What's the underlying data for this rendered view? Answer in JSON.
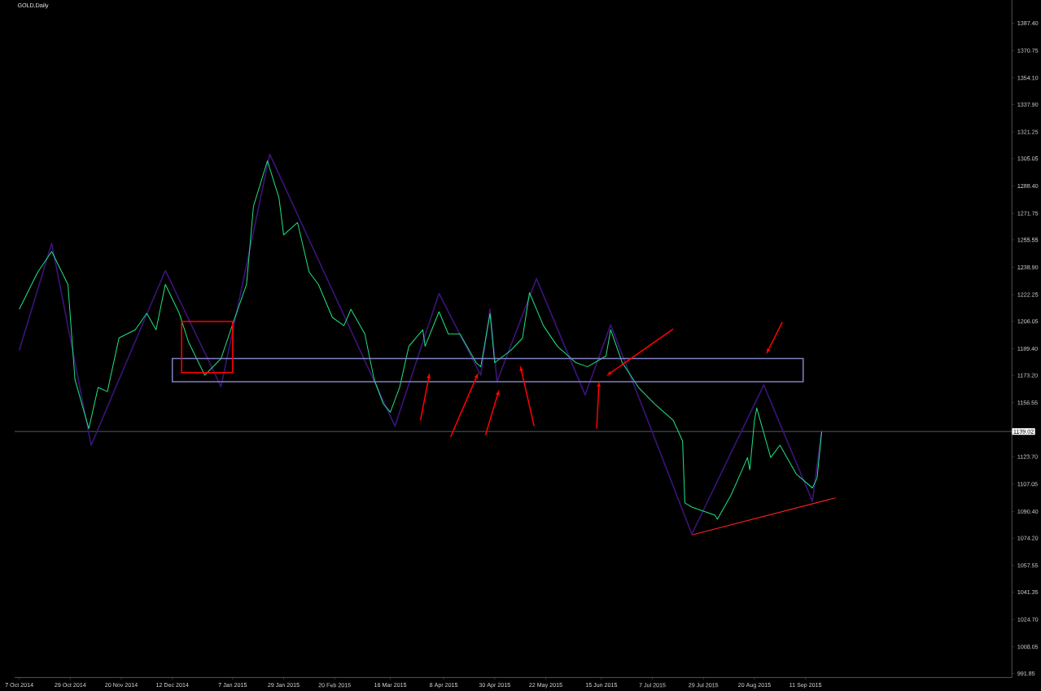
{
  "chart_data": {
    "type": "line",
    "title": "GOLD,Daily",
    "xlim": [
      "2014-10-05",
      "2015-12-09"
    ],
    "ylim": [
      989.4,
      1401.4
    ],
    "xticks": [
      {
        "value": "2014-10-07",
        "label": "7 Oct 2014"
      },
      {
        "value": "2014-10-29",
        "label": "29 Oct 2014"
      },
      {
        "value": "2014-11-20",
        "label": "20 Nov 2014"
      },
      {
        "value": "2014-12-12",
        "label": "12 Dec 2014"
      },
      {
        "value": "2015-01-07",
        "label": "7 Jan 2015"
      },
      {
        "value": "2015-01-29",
        "label": "29 Jan 2015"
      },
      {
        "value": "2015-02-20",
        "label": "20 Feb 2015"
      },
      {
        "value": "2015-03-16",
        "label": "16 Mar 2015"
      },
      {
        "value": "2015-04-08",
        "label": "8 Apr 2015"
      },
      {
        "value": "2015-04-30",
        "label": "30 Apr 2015"
      },
      {
        "value": "2015-05-22",
        "label": "22 May 2015"
      },
      {
        "value": "2015-06-15",
        "label": "15 Jun 2015"
      },
      {
        "value": "2015-07-07",
        "label": "7 Jul 2015"
      },
      {
        "value": "2015-07-29",
        "label": "29 Jul 2015"
      },
      {
        "value": "2015-08-20",
        "label": "20 Aug 2015"
      },
      {
        "value": "2015-09-11",
        "label": "11 Sep 2015"
      }
    ],
    "yticks": [
      {
        "value": 1387.4,
        "label": "1387.40"
      },
      {
        "value": 1370.75,
        "label": "1370.75"
      },
      {
        "value": 1354.1,
        "label": "1354.10"
      },
      {
        "value": 1337.9,
        "label": "1337.90"
      },
      {
        "value": 1321.25,
        "label": "1321.25"
      },
      {
        "value": 1305.05,
        "label": "1305.05"
      },
      {
        "value": 1288.4,
        "label": "1288.40"
      },
      {
        "value": 1271.75,
        "label": "1271.75"
      },
      {
        "value": 1255.55,
        "label": "1255.55"
      },
      {
        "value": 1238.9,
        "label": "1238.90"
      },
      {
        "value": 1222.25,
        "label": "1222.25"
      },
      {
        "value": 1206.05,
        "label": "1206.05"
      },
      {
        "value": 1189.4,
        "label": "1189.40"
      },
      {
        "value": 1173.2,
        "label": "1173.20"
      },
      {
        "value": 1156.55,
        "label": "1156.55"
      },
      {
        "value": 1123.7,
        "label": "1123.70"
      },
      {
        "value": 1107.05,
        "label": "1107.05"
      },
      {
        "value": 1090.4,
        "label": "1090.40"
      },
      {
        "value": 1074.2,
        "label": "1074.20"
      },
      {
        "value": 1057.55,
        "label": "1057.55"
      },
      {
        "value": 1041.35,
        "label": "1041.35"
      },
      {
        "value": 1024.7,
        "label": "1024.70"
      },
      {
        "value": 1008.05,
        "label": "1008.05"
      },
      {
        "value": 991.85,
        "label": "991.85"
      }
    ],
    "ref_lines": [
      {
        "axis": "y",
        "value": 1139.02,
        "label": "1139.02",
        "color": "#8090b0"
      }
    ],
    "series": [
      {
        "color": "#20e080",
        "x": [
          "2014-10-07",
          "2014-10-15",
          "2014-10-21",
          "2014-10-28",
          "2014-10-31",
          "2014-11-06",
          "2014-11-10",
          "2014-11-14",
          "2014-11-19",
          "2014-11-26",
          "2014-12-01",
          "2014-12-05",
          "2014-12-09",
          "2014-12-15",
          "2014-12-19",
          "2014-12-26",
          "2015-01-02",
          "2015-01-08",
          "2015-01-13",
          "2015-01-16",
          "2015-01-22",
          "2015-01-27",
          "2015-01-29",
          "2015-02-04",
          "2015-02-09",
          "2015-02-13",
          "2015-02-19",
          "2015-02-24",
          "2015-02-27",
          "2015-03-05",
          "2015-03-09",
          "2015-03-13",
          "2015-03-16",
          "2015-03-20",
          "2015-03-24",
          "2015-03-30",
          "2015-03-31",
          "2015-04-06",
          "2015-04-10",
          "2015-04-15",
          "2015-04-22",
          "2015-04-24",
          "2015-04-28",
          "2015-04-30",
          "2015-05-07",
          "2015-05-12",
          "2015-05-15",
          "2015-05-21",
          "2015-05-27",
          "2015-06-04",
          "2015-06-09",
          "2015-06-17",
          "2015-06-19",
          "2015-06-24",
          "2015-07-01",
          "2015-07-08",
          "2015-07-16",
          "2015-07-20",
          "2015-07-21",
          "2015-07-24",
          "2015-08-03",
          "2015-08-04",
          "2015-08-10",
          "2015-08-17",
          "2015-08-18",
          "2015-08-20",
          "2015-08-21",
          "2015-08-27",
          "2015-08-31",
          "2015-09-07",
          "2015-09-14",
          "2015-09-16",
          "2015-09-18"
        ],
        "values": [
          1213.4,
          1236.0,
          1248.5,
          1228.5,
          1170.8,
          1140.8,
          1165.8,
          1163.3,
          1195.9,
          1200.9,
          1210.9,
          1200.9,
          1228.5,
          1210.9,
          1193.4,
          1173.3,
          1183.4,
          1208.4,
          1228.5,
          1276.1,
          1303.7,
          1281.1,
          1258.6,
          1266.1,
          1236.0,
          1228.5,
          1208.4,
          1203.4,
          1213.4,
          1198.4,
          1170.8,
          1155.8,
          1150.8,
          1165.8,
          1190.9,
          1200.9,
          1190.9,
          1211.9,
          1198.4,
          1198.4,
          1180.9,
          1178.4,
          1210.9,
          1180.9,
          1188.4,
          1195.9,
          1223.5,
          1203.4,
          1190.9,
          1180.9,
          1178.4,
          1184.9,
          1200.9,
          1180.9,
          1165.8,
          1155.8,
          1145.8,
          1133.3,
          1095.6,
          1093.1,
          1088.1,
          1085.6,
          1100.6,
          1123.2,
          1115.7,
          1145.8,
          1153.3,
          1123.2,
          1130.7,
          1113.2,
          1104.7,
          1110.7,
          1139.0
        ]
      },
      {
        "color": "#3a1478",
        "x": [
          "2014-10-07",
          "2014-10-21",
          "2014-11-07",
          "2014-12-09",
          "2015-01-02",
          "2015-01-23",
          "2015-03-18",
          "2015-04-06",
          "2015-04-24",
          "2015-04-28",
          "2015-05-01",
          "2015-05-18",
          "2015-06-08",
          "2015-06-19",
          "2015-07-24",
          "2015-08-24",
          "2015-09-14",
          "2015-09-18"
        ],
        "values": [
          1188.4,
          1253.5,
          1130.7,
          1236.9,
          1166.3,
          1307.7,
          1142.3,
          1223.0,
          1173.3,
          1213.5,
          1169.3,
          1232.0,
          1161.3,
          1203.9,
          1076.6,
          1167.3,
          1096.6,
          1139.8
        ]
      },
      {
        "color": "#ff2020",
        "x": [
          "2015-07-24",
          "2015-09-24"
        ],
        "values": [
          1076.1,
          1098.7
        ]
      }
    ]
  }
}
